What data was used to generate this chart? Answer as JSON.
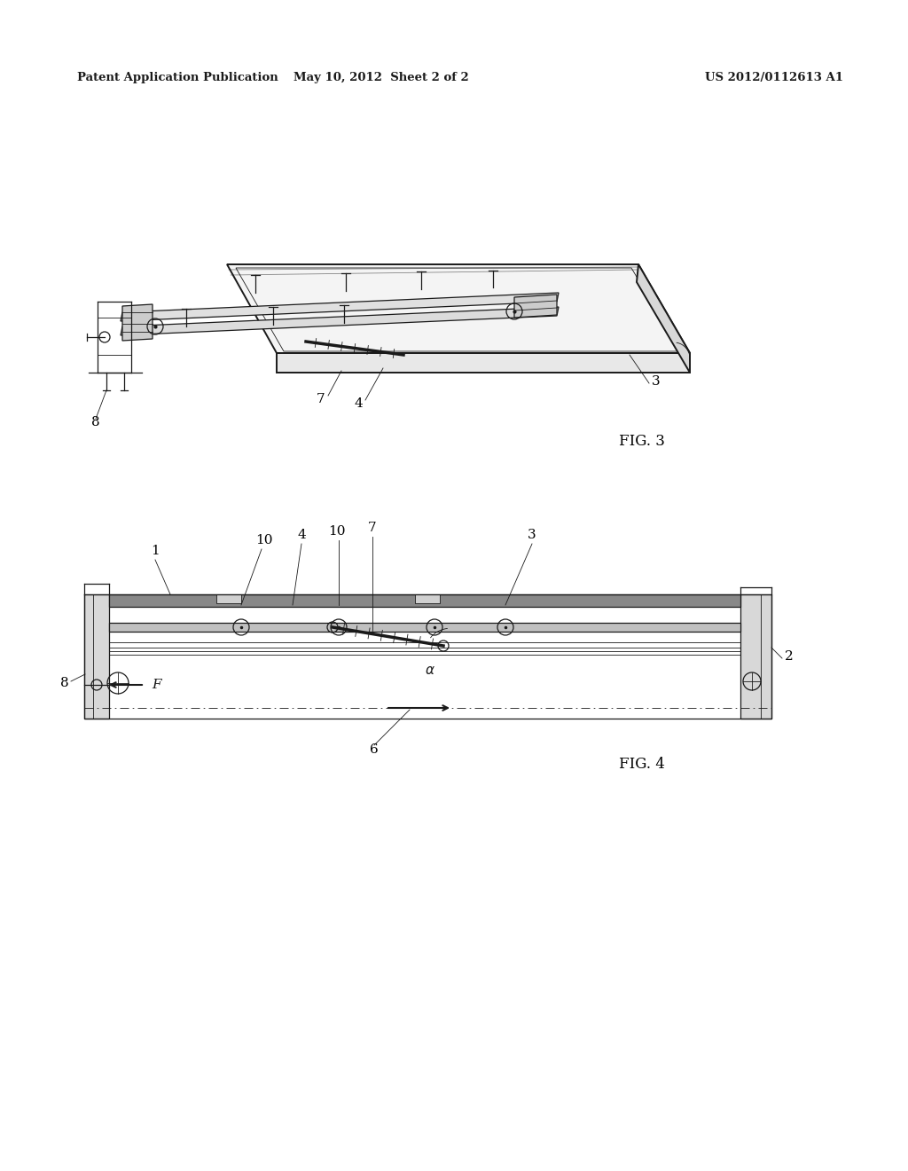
{
  "title_left": "Patent Application Publication",
  "title_mid": "May 10, 2012  Sheet 2 of 2",
  "title_right": "US 2012/0112613 A1",
  "fig3_label": "FIG. 3",
  "fig4_label": "FIG. 4",
  "bg": "#ffffff",
  "lc": "#1a1a1a"
}
